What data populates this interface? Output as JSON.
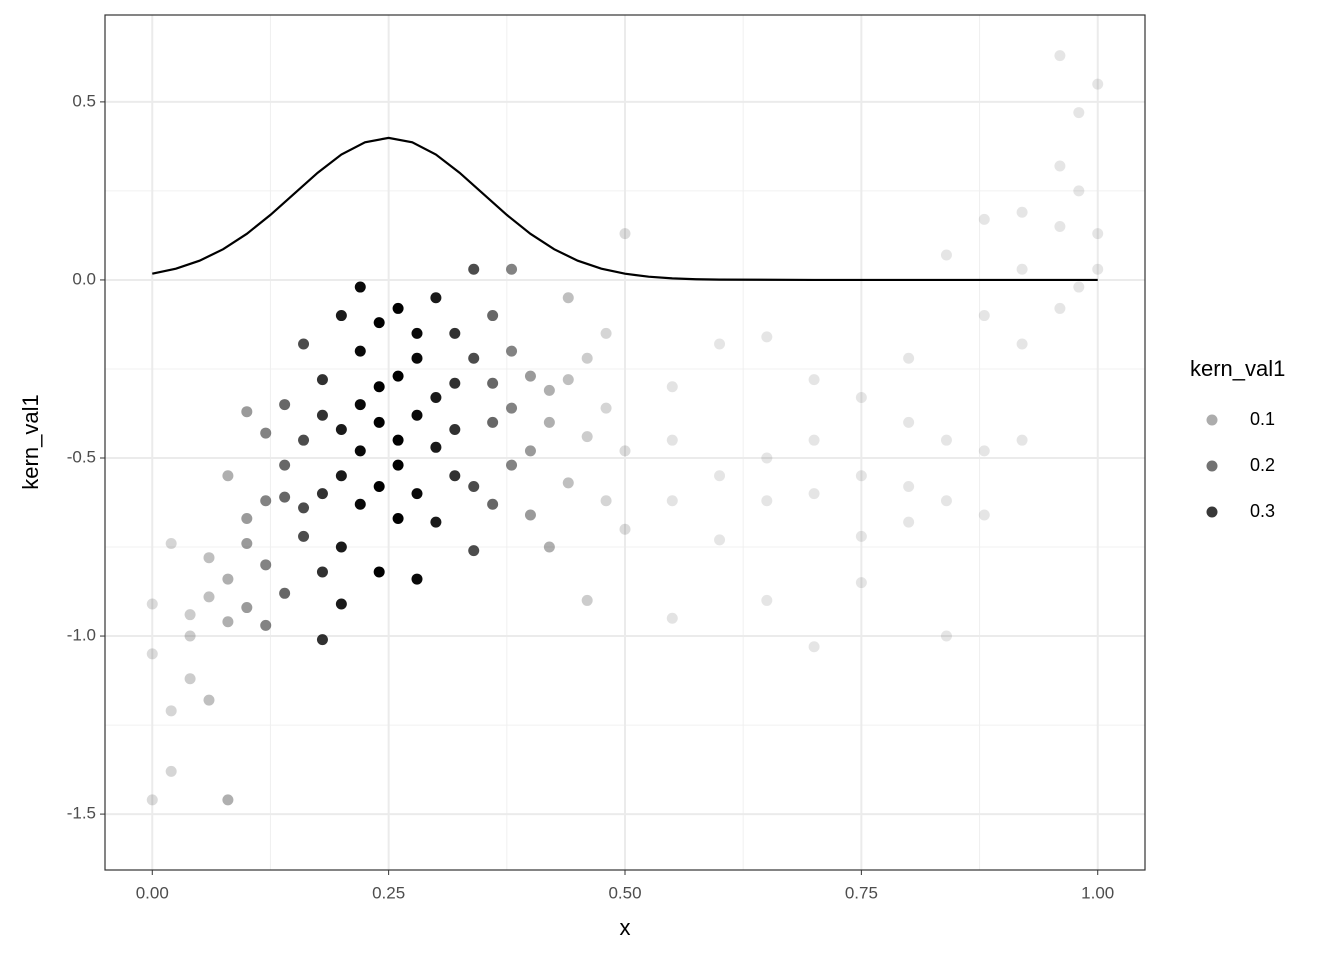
{
  "chart_data": {
    "type": "scatter",
    "x_label": "x",
    "y_label": "kern_val1",
    "xlim": [
      -0.05,
      1.05
    ],
    "ylim": [
      -1.657,
      0.744
    ],
    "xticks": [
      {
        "value": 0,
        "label": "0.00"
      },
      {
        "value": 0.25,
        "label": "0.25"
      },
      {
        "value": 0.5,
        "label": "0.50"
      },
      {
        "value": 0.75,
        "label": "0.75"
      },
      {
        "value": 1,
        "label": "1.00"
      }
    ],
    "yticks": [
      {
        "value": -1.5,
        "label": "-1.5"
      },
      {
        "value": -1,
        "label": "-1.0"
      },
      {
        "value": -0.5,
        "label": "-0.5"
      },
      {
        "value": 0,
        "label": "0.0"
      },
      {
        "value": 0.5,
        "label": "0.5"
      }
    ],
    "grid": true,
    "color": "#000000",
    "legend": {
      "title": "kern_val1",
      "position": "right",
      "values": [
        0.1,
        0.2,
        0.3
      ]
    },
    "line": {
      "x": [
        0,
        0.025,
        0.05,
        0.075,
        0.1,
        0.125,
        0.15,
        0.175,
        0.2,
        0.225,
        0.25,
        0.275,
        0.3,
        0.325,
        0.35,
        0.375,
        0.4,
        0.425,
        0.45,
        0.475,
        0.5,
        0.525,
        0.55,
        0.575,
        0.6,
        0.7,
        0.8,
        0.9,
        1
      ],
      "y": [
        0.0175,
        0.0317,
        0.054,
        0.0863,
        0.1295,
        0.1826,
        0.242,
        0.3011,
        0.3521,
        0.3867,
        0.3989,
        0.3867,
        0.3521,
        0.3011,
        0.242,
        0.1826,
        0.1295,
        0.0863,
        0.054,
        0.0317,
        0.0175,
        0.0091,
        0.0044,
        0.002,
        0.0009,
        0,
        0,
        0,
        0
      ]
    },
    "points": [
      {
        "x": 0,
        "y": -0.91,
        "kern_val1": 0.018
      },
      {
        "x": 0,
        "y": -1.05,
        "kern_val1": 0.018
      },
      {
        "x": 0,
        "y": -1.46,
        "kern_val1": 0.018
      },
      {
        "x": 0.02,
        "y": -1.21,
        "kern_val1": 0.028
      },
      {
        "x": 0.02,
        "y": -0.74,
        "kern_val1": 0.028
      },
      {
        "x": 0.02,
        "y": -1.38,
        "kern_val1": 0.028
      },
      {
        "x": 0.04,
        "y": -1,
        "kern_val1": 0.044
      },
      {
        "x": 0.04,
        "y": -1.12,
        "kern_val1": 0.044
      },
      {
        "x": 0.04,
        "y": -0.94,
        "kern_val1": 0.044
      },
      {
        "x": 0.06,
        "y": -0.89,
        "kern_val1": 0.066
      },
      {
        "x": 0.06,
        "y": -1.18,
        "kern_val1": 0.066
      },
      {
        "x": 0.06,
        "y": -0.78,
        "kern_val1": 0.066
      },
      {
        "x": 0.08,
        "y": -0.55,
        "kern_val1": 0.095
      },
      {
        "x": 0.08,
        "y": -0.84,
        "kern_val1": 0.095
      },
      {
        "x": 0.08,
        "y": -1.46,
        "kern_val1": 0.095
      },
      {
        "x": 0.08,
        "y": -0.96,
        "kern_val1": 0.095
      },
      {
        "x": 0.1,
        "y": -0.67,
        "kern_val1": 0.13
      },
      {
        "x": 0.1,
        "y": -0.92,
        "kern_val1": 0.13
      },
      {
        "x": 0.1,
        "y": -0.37,
        "kern_val1": 0.13
      },
      {
        "x": 0.1,
        "y": -0.74,
        "kern_val1": 0.13
      },
      {
        "x": 0.12,
        "y": -0.43,
        "kern_val1": 0.171
      },
      {
        "x": 0.12,
        "y": -0.8,
        "kern_val1": 0.171
      },
      {
        "x": 0.12,
        "y": -0.62,
        "kern_val1": 0.171
      },
      {
        "x": 0.12,
        "y": -0.97,
        "kern_val1": 0.171
      },
      {
        "x": 0.14,
        "y": -0.35,
        "kern_val1": 0.218
      },
      {
        "x": 0.14,
        "y": -0.61,
        "kern_val1": 0.218
      },
      {
        "x": 0.14,
        "y": -0.88,
        "kern_val1": 0.218
      },
      {
        "x": 0.14,
        "y": -0.52,
        "kern_val1": 0.218
      },
      {
        "x": 0.16,
        "y": -0.18,
        "kern_val1": 0.266
      },
      {
        "x": 0.16,
        "y": -0.64,
        "kern_val1": 0.266
      },
      {
        "x": 0.16,
        "y": -0.72,
        "kern_val1": 0.266
      },
      {
        "x": 0.16,
        "y": -0.45,
        "kern_val1": 0.266
      },
      {
        "x": 0.18,
        "y": -0.38,
        "kern_val1": 0.312
      },
      {
        "x": 0.18,
        "y": -1.01,
        "kern_val1": 0.312
      },
      {
        "x": 0.18,
        "y": -0.6,
        "kern_val1": 0.312
      },
      {
        "x": 0.18,
        "y": -0.82,
        "kern_val1": 0.312
      },
      {
        "x": 0.18,
        "y": -0.28,
        "kern_val1": 0.312
      },
      {
        "x": 0.2,
        "y": -0.1,
        "kern_val1": 0.352
      },
      {
        "x": 0.2,
        "y": -0.55,
        "kern_val1": 0.352
      },
      {
        "x": 0.2,
        "y": -0.75,
        "kern_val1": 0.352
      },
      {
        "x": 0.2,
        "y": -0.91,
        "kern_val1": 0.352
      },
      {
        "x": 0.2,
        "y": -0.42,
        "kern_val1": 0.352
      },
      {
        "x": 0.22,
        "y": -0.02,
        "kern_val1": 0.381
      },
      {
        "x": 0.22,
        "y": -0.35,
        "kern_val1": 0.381
      },
      {
        "x": 0.22,
        "y": -0.63,
        "kern_val1": 0.381
      },
      {
        "x": 0.22,
        "y": -0.2,
        "kern_val1": 0.381
      },
      {
        "x": 0.22,
        "y": -0.48,
        "kern_val1": 0.381
      },
      {
        "x": 0.24,
        "y": -0.12,
        "kern_val1": 0.397
      },
      {
        "x": 0.24,
        "y": -0.58,
        "kern_val1": 0.397
      },
      {
        "x": 0.24,
        "y": -0.3,
        "kern_val1": 0.397
      },
      {
        "x": 0.24,
        "y": -0.82,
        "kern_val1": 0.397
      },
      {
        "x": 0.24,
        "y": -0.4,
        "kern_val1": 0.397
      },
      {
        "x": 0.26,
        "y": -0.08,
        "kern_val1": 0.397
      },
      {
        "x": 0.26,
        "y": -0.52,
        "kern_val1": 0.397
      },
      {
        "x": 0.26,
        "y": -0.27,
        "kern_val1": 0.397
      },
      {
        "x": 0.26,
        "y": -0.67,
        "kern_val1": 0.397
      },
      {
        "x": 0.26,
        "y": -0.45,
        "kern_val1": 0.397
      },
      {
        "x": 0.28,
        "y": -0.22,
        "kern_val1": 0.381
      },
      {
        "x": 0.28,
        "y": -0.6,
        "kern_val1": 0.381
      },
      {
        "x": 0.28,
        "y": -0.38,
        "kern_val1": 0.381
      },
      {
        "x": 0.28,
        "y": -0.84,
        "kern_val1": 0.381
      },
      {
        "x": 0.28,
        "y": -0.15,
        "kern_val1": 0.381
      },
      {
        "x": 0.3,
        "y": -0.05,
        "kern_val1": 0.352
      },
      {
        "x": 0.3,
        "y": -0.33,
        "kern_val1": 0.352
      },
      {
        "x": 0.3,
        "y": -0.68,
        "kern_val1": 0.352
      },
      {
        "x": 0.3,
        "y": -0.47,
        "kern_val1": 0.352
      },
      {
        "x": 0.32,
        "y": -0.15,
        "kern_val1": 0.312
      },
      {
        "x": 0.32,
        "y": -0.42,
        "kern_val1": 0.312
      },
      {
        "x": 0.32,
        "y": -0.29,
        "kern_val1": 0.312
      },
      {
        "x": 0.32,
        "y": -0.55,
        "kern_val1": 0.312
      },
      {
        "x": 0.34,
        "y": 0.03,
        "kern_val1": 0.266
      },
      {
        "x": 0.34,
        "y": -0.58,
        "kern_val1": 0.266
      },
      {
        "x": 0.34,
        "y": -0.76,
        "kern_val1": 0.266
      },
      {
        "x": 0.34,
        "y": -0.22,
        "kern_val1": 0.266
      },
      {
        "x": 0.36,
        "y": -0.29,
        "kern_val1": 0.218
      },
      {
        "x": 0.36,
        "y": -0.63,
        "kern_val1": 0.218
      },
      {
        "x": 0.36,
        "y": -0.4,
        "kern_val1": 0.218
      },
      {
        "x": 0.36,
        "y": -0.1,
        "kern_val1": 0.218
      },
      {
        "x": 0.38,
        "y": 0.03,
        "kern_val1": 0.171
      },
      {
        "x": 0.38,
        "y": -0.36,
        "kern_val1": 0.171
      },
      {
        "x": 0.38,
        "y": -0.52,
        "kern_val1": 0.171
      },
      {
        "x": 0.38,
        "y": -0.2,
        "kern_val1": 0.171
      },
      {
        "x": 0.4,
        "y": -0.27,
        "kern_val1": 0.13
      },
      {
        "x": 0.4,
        "y": -0.66,
        "kern_val1": 0.13
      },
      {
        "x": 0.4,
        "y": -0.48,
        "kern_val1": 0.13
      },
      {
        "x": 0.42,
        "y": -0.31,
        "kern_val1": 0.095
      },
      {
        "x": 0.42,
        "y": -0.75,
        "kern_val1": 0.095
      },
      {
        "x": 0.42,
        "y": -0.4,
        "kern_val1": 0.095
      },
      {
        "x": 0.44,
        "y": -0.05,
        "kern_val1": 0.066
      },
      {
        "x": 0.44,
        "y": -0.57,
        "kern_val1": 0.066
      },
      {
        "x": 0.44,
        "y": -0.28,
        "kern_val1": 0.066
      },
      {
        "x": 0.46,
        "y": -0.44,
        "kern_val1": 0.044
      },
      {
        "x": 0.46,
        "y": -0.9,
        "kern_val1": 0.044
      },
      {
        "x": 0.46,
        "y": -0.22,
        "kern_val1": 0.044
      },
      {
        "x": 0.48,
        "y": -0.15,
        "kern_val1": 0.028
      },
      {
        "x": 0.48,
        "y": -0.62,
        "kern_val1": 0.028
      },
      {
        "x": 0.48,
        "y": -0.36,
        "kern_val1": 0.028
      },
      {
        "x": 0.5,
        "y": 0.13,
        "kern_val1": 0.018
      },
      {
        "x": 0.5,
        "y": -0.48,
        "kern_val1": 0.018
      },
      {
        "x": 0.5,
        "y": -0.7,
        "kern_val1": 0.018
      },
      {
        "x": 0.55,
        "y": -0.45,
        "kern_val1": 0.004
      },
      {
        "x": 0.55,
        "y": -0.62,
        "kern_val1": 0.004
      },
      {
        "x": 0.55,
        "y": -0.95,
        "kern_val1": 0.004
      },
      {
        "x": 0.55,
        "y": -0.3,
        "kern_val1": 0.004
      },
      {
        "x": 0.6,
        "y": -0.18,
        "kern_val1": 0.001
      },
      {
        "x": 0.6,
        "y": -0.55,
        "kern_val1": 0.001
      },
      {
        "x": 0.6,
        "y": -0.73,
        "kern_val1": 0.001
      },
      {
        "x": 0.65,
        "y": -0.16,
        "kern_val1": 0
      },
      {
        "x": 0.65,
        "y": -0.5,
        "kern_val1": 0
      },
      {
        "x": 0.65,
        "y": -0.62,
        "kern_val1": 0
      },
      {
        "x": 0.65,
        "y": -0.9,
        "kern_val1": 0
      },
      {
        "x": 0.7,
        "y": -0.28,
        "kern_val1": 0
      },
      {
        "x": 0.7,
        "y": -0.6,
        "kern_val1": 0
      },
      {
        "x": 0.7,
        "y": -1.03,
        "kern_val1": 0
      },
      {
        "x": 0.7,
        "y": -0.45,
        "kern_val1": 0
      },
      {
        "x": 0.75,
        "y": -0.33,
        "kern_val1": 0
      },
      {
        "x": 0.75,
        "y": -0.72,
        "kern_val1": 0
      },
      {
        "x": 0.75,
        "y": -0.85,
        "kern_val1": 0
      },
      {
        "x": 0.75,
        "y": -0.55,
        "kern_val1": 0
      },
      {
        "x": 0.8,
        "y": -0.4,
        "kern_val1": 0
      },
      {
        "x": 0.8,
        "y": -0.58,
        "kern_val1": 0
      },
      {
        "x": 0.8,
        "y": -0.68,
        "kern_val1": 0
      },
      {
        "x": 0.8,
        "y": -0.22,
        "kern_val1": 0
      },
      {
        "x": 0.84,
        "y": -0.45,
        "kern_val1": 0
      },
      {
        "x": 0.84,
        "y": -1,
        "kern_val1": 0
      },
      {
        "x": 0.84,
        "y": 0.07,
        "kern_val1": 0
      },
      {
        "x": 0.84,
        "y": -0.62,
        "kern_val1": 0
      },
      {
        "x": 0.88,
        "y": -0.1,
        "kern_val1": 0
      },
      {
        "x": 0.88,
        "y": -0.48,
        "kern_val1": 0
      },
      {
        "x": 0.88,
        "y": -0.66,
        "kern_val1": 0
      },
      {
        "x": 0.88,
        "y": 0.17,
        "kern_val1": 0
      },
      {
        "x": 0.92,
        "y": -0.18,
        "kern_val1": 0
      },
      {
        "x": 0.92,
        "y": 0.03,
        "kern_val1": 0
      },
      {
        "x": 0.92,
        "y": -0.45,
        "kern_val1": 0
      },
      {
        "x": 0.92,
        "y": 0.19,
        "kern_val1": 0
      },
      {
        "x": 0.96,
        "y": 0.63,
        "kern_val1": 0
      },
      {
        "x": 0.96,
        "y": 0.15,
        "kern_val1": 0
      },
      {
        "x": 0.96,
        "y": -0.08,
        "kern_val1": 0
      },
      {
        "x": 0.96,
        "y": 0.32,
        "kern_val1": 0
      },
      {
        "x": 0.98,
        "y": 0.47,
        "kern_val1": 0
      },
      {
        "x": 0.98,
        "y": -0.02,
        "kern_val1": 0
      },
      {
        "x": 0.98,
        "y": 0.25,
        "kern_val1": 0
      },
      {
        "x": 1,
        "y": 0.55,
        "kern_val1": 0
      },
      {
        "x": 1,
        "y": 0.13,
        "kern_val1": 0
      },
      {
        "x": 1,
        "y": 0.03,
        "kern_val1": 0
      }
    ]
  }
}
